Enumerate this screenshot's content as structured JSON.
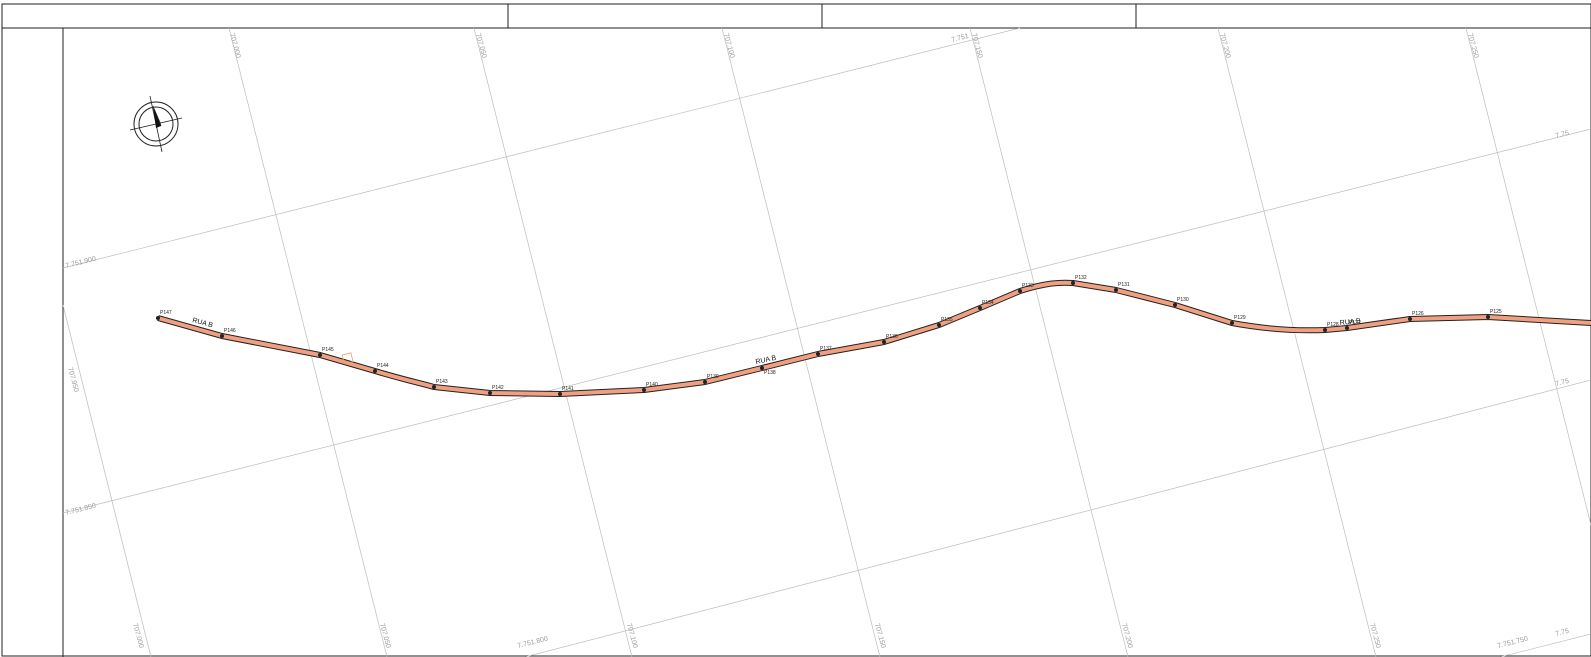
{
  "sheet": {
    "title_cells": [
      "",
      "",
      "",
      ""
    ]
  },
  "north_arrow": {
    "icon": "north-arrow-icon"
  },
  "grid": {
    "easting_labels": [
      {
        "text": "707.000"
      },
      {
        "text": "707.050"
      },
      {
        "text": "707.100"
      },
      {
        "text": "707.150"
      },
      {
        "text": "707.200"
      },
      {
        "text": "707.250"
      }
    ],
    "bottom_easting_labels": [
      {
        "text": "707.000"
      },
      {
        "text": "707.050"
      },
      {
        "text": "707.100"
      },
      {
        "text": "707.150"
      },
      {
        "text": "707.200"
      },
      {
        "text": "707.250"
      }
    ],
    "left_easting_label": {
      "text": "707.950"
    },
    "northing_labels": [
      {
        "text": "7.751.900"
      },
      {
        "text": "7.751.850"
      },
      {
        "text": "7.751.800"
      },
      {
        "text": "7.751.750"
      },
      {
        "text": "7.751"
      },
      {
        "text": "7.75"
      },
      {
        "text": "7.75"
      },
      {
        "text": "7.75"
      }
    ]
  },
  "road": {
    "fill_color": "#f0a080",
    "edge_color": "#222222",
    "street_labels": [
      {
        "text": "RUA B"
      },
      {
        "text": "RUA B"
      },
      {
        "text": "RUA B"
      }
    ],
    "vertices": [
      {
        "id": "P147"
      },
      {
        "id": "P146"
      },
      {
        "id": "P145"
      },
      {
        "id": "P144"
      },
      {
        "id": "P143"
      },
      {
        "id": "P142"
      },
      {
        "id": "P141"
      },
      {
        "id": "P140"
      },
      {
        "id": "P139"
      },
      {
        "id": "P138"
      },
      {
        "id": "P137"
      },
      {
        "id": "P136"
      },
      {
        "id": "P135"
      },
      {
        "id": "P134"
      },
      {
        "id": "P133"
      },
      {
        "id": "P132"
      },
      {
        "id": "P131"
      },
      {
        "id": "P130"
      },
      {
        "id": "P129"
      },
      {
        "id": "P128"
      },
      {
        "id": "P127"
      },
      {
        "id": "P126"
      },
      {
        "id": "P125"
      }
    ]
  }
}
